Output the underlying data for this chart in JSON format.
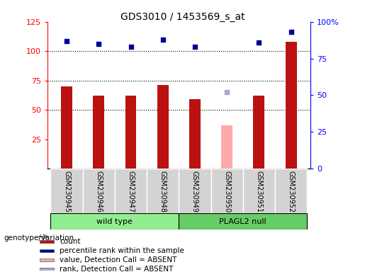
{
  "title": "GDS3010 / 1453569_s_at",
  "samples": [
    "GSM230945",
    "GSM230946",
    "GSM230947",
    "GSM230948",
    "GSM230949",
    "GSM230950",
    "GSM230951",
    "GSM230952"
  ],
  "count_values": [
    70,
    62,
    62,
    71,
    59,
    null,
    62,
    108
  ],
  "count_absent": [
    null,
    null,
    null,
    null,
    null,
    37,
    null,
    null
  ],
  "percentile_values": [
    87,
    85,
    83,
    88,
    83,
    null,
    86,
    93
  ],
  "percentile_absent": [
    null,
    null,
    null,
    null,
    null,
    52,
    null,
    null
  ],
  "ylim_left": [
    0,
    125
  ],
  "ylim_right": [
    0,
    100
  ],
  "yticks_left": [
    25,
    50,
    75,
    100,
    125
  ],
  "yticks_right": [
    0,
    25,
    50,
    75,
    100
  ],
  "yticklabels_right": [
    "0",
    "25",
    "50",
    "75",
    "100%"
  ],
  "bar_color_normal": "#bb1111",
  "bar_color_absent": "#ffaaaa",
  "dot_color_normal": "#000099",
  "dot_color_absent": "#aaaacc",
  "legend_items": [
    {
      "color": "#bb1111",
      "label": "count"
    },
    {
      "color": "#000099",
      "label": "percentile rank within the sample"
    },
    {
      "color": "#ffaaaa",
      "label": "value, Detection Call = ABSENT"
    },
    {
      "color": "#aaaacc",
      "label": "rank, Detection Call = ABSENT"
    }
  ]
}
